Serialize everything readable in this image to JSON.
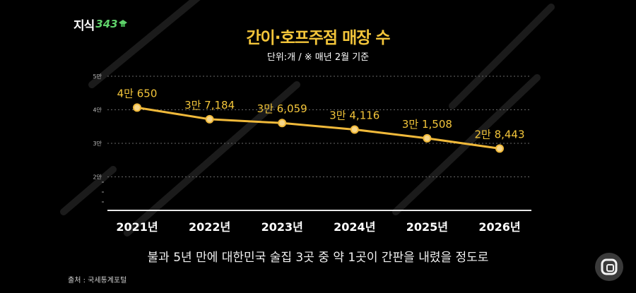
{
  "brand": {
    "logo_ko": "지식",
    "logo_num": "343"
  },
  "title": "간이·호프주점 매장 수",
  "unit_note": "단위:개 / ※ 매년 2월 기준",
  "caption": "불과 5년 만에 대한민국 술집 3곳 중 약 1곳이 간판을 내렸을 정도로",
  "source": "출처 : 국세통계포털",
  "colors": {
    "accent": "#f3c53a",
    "line": "#f0b93a",
    "logo_green": "#5fd06a",
    "background": "#000000"
  },
  "chart_data": {
    "type": "line",
    "categories": [
      "2021년",
      "2022년",
      "2023년",
      "2024년",
      "2025년",
      "2026년"
    ],
    "values": [
      40650,
      37184,
      36059,
      34116,
      31508,
      28443
    ],
    "data_labels": [
      "4만 650",
      "3만 7,184",
      "3만 6,059",
      "3만 4,116",
      "3만 1,508",
      "2만 8,443"
    ],
    "y_ticks": [
      {
        "value": 50000,
        "label": "5만"
      },
      {
        "value": 40000,
        "label": "4만"
      },
      {
        "value": 30000,
        "label": "3만"
      },
      {
        "value": 20000,
        "label": "2만"
      }
    ],
    "ylim": [
      10000,
      50000
    ],
    "grid": true,
    "title": "간이·호프주점 매장 수",
    "xlabel": "",
    "ylabel": ""
  },
  "fab_icon": "overlay-app-icon"
}
